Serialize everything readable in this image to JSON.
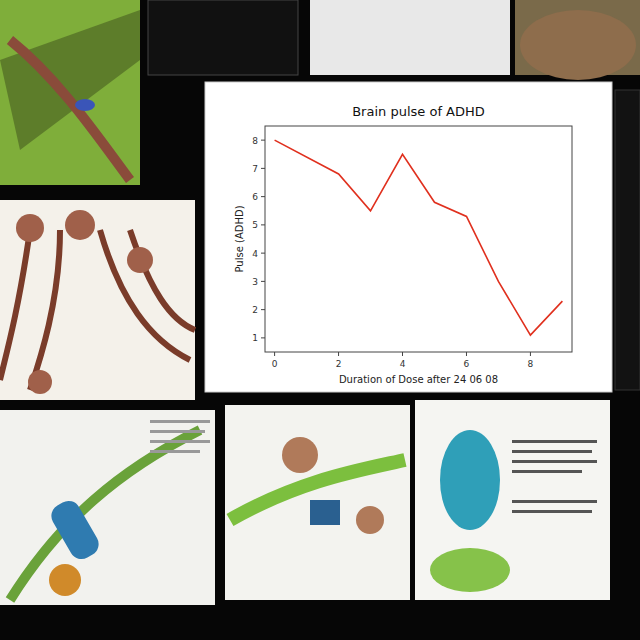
{
  "chart_data": {
    "type": "line",
    "title": "Brain pulse of ADHD",
    "x_label": "Duration of Dose after 24 06 08",
    "y_label": "Pulse (ADHD)",
    "x": [
      0,
      2,
      3,
      4,
      5,
      6,
      7,
      8,
      9
    ],
    "series": [
      {
        "name": "Pulse",
        "color": "#e0301e",
        "values": [
          8,
          6.8,
          5.5,
          7.5,
          5.8,
          5.3,
          3.0,
          1.1,
          2.3
        ]
      }
    ],
    "xlim": [
      -0.3,
      9.3
    ],
    "xticks": [
      0,
      2,
      4,
      6,
      8
    ],
    "ylim": [
      0.5,
      8.5
    ],
    "yticks": [
      1,
      2,
      3,
      4,
      5,
      6,
      7,
      8
    ],
    "grid": false
  }
}
